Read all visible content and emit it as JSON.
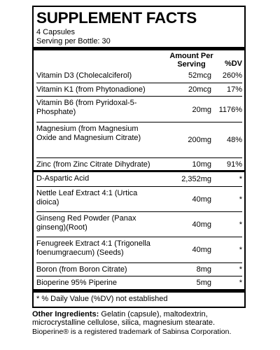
{
  "title": "SUPPLEMENT FACTS",
  "serving_size": "4 Capsules",
  "servings_per": "Serving per Bottle: 30",
  "col_amount": "Amount Per Serving",
  "col_dv": "%DV",
  "rows_a": [
    {
      "name": "Vitamin D3 (Cholecalciferol)",
      "amount": "52mcg",
      "dv": "260%"
    },
    {
      "name": "Vitamin K1 (from Phytonadione)",
      "amount": "20mcg",
      "dv": "17%"
    },
    {
      "name": "Vitamin B6 (from Pyridoxal-5-Phosphate)",
      "amount": "20mg",
      "dv": "1176%"
    },
    {
      "name": "Magnesium (from Magnesium Oxide and Magnesium Citrate)",
      "amount": "200mg",
      "dv": "48%"
    },
    {
      "name": "Zinc (from Zinc Citrate Dihydrate)",
      "amount": "10mg",
      "dv": "91%"
    }
  ],
  "rows_b": [
    {
      "name": "D-Aspartic Acid",
      "amount": "2,352mg",
      "dv": "*"
    },
    {
      "name": "Nettle Leaf Extract 4:1 (Urtica dioica)",
      "amount": "40mg",
      "dv": "*"
    },
    {
      "name": "Ginseng Red Powder (Panax ginseng)(Root)",
      "amount": "40mg",
      "dv": "*"
    },
    {
      "name": "Fenugreek Extract 4:1 (Trigonella foenumgraecum) (Seeds)",
      "amount": "40mg",
      "dv": "*"
    },
    {
      "name": "Boron (from Boron Citrate)",
      "amount": "8mg",
      "dv": "*"
    },
    {
      "name": "Bioperine 95% Piperine",
      "amount": "5mg",
      "dv": "*"
    }
  ],
  "footnote": "* % Daily Value (%DV) not established",
  "other_label": "Other Ingredients:",
  "other_text": " Gelatin (capsule), maltodextrin, microcrystalline cellulose, silica, magnesium stearate.",
  "trademark": "Bioperine® is a registered trademark of Sabinsa Corporation."
}
